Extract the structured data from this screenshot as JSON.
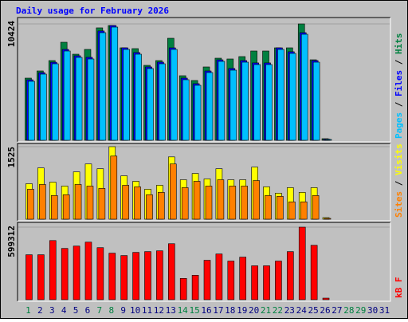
{
  "chart_data": {
    "type": "bar",
    "title": "Daily usage for February 2026",
    "categories": [
      "1",
      "2",
      "3",
      "4",
      "5",
      "6",
      "7",
      "8",
      "9",
      "10",
      "11",
      "12",
      "13",
      "14",
      "15",
      "16",
      "17",
      "18",
      "19",
      "20",
      "21",
      "22",
      "23",
      "24",
      "25",
      "26",
      "27",
      "28",
      "29",
      "30",
      "31"
    ],
    "category_colors": [
      "#008040",
      "#000080",
      "#000080",
      "#000080",
      "#000080",
      "#000080",
      "#008040",
      "#008040",
      "#000080",
      "#000080",
      "#000080",
      "#000080",
      "#000080",
      "#008040",
      "#008040",
      "#000080",
      "#000080",
      "#000080",
      "#000080",
      "#000080",
      "#008040",
      "#008040",
      "#000080",
      "#000080",
      "#000080",
      "#000080",
      "#000080",
      "#008040",
      "#008040",
      "#000080",
      "#000080"
    ],
    "legend_separator": " / ",
    "panels": [
      {
        "ylim": [
          0,
          10424
        ],
        "yticks": [
          10424
        ],
        "series": [
          {
            "name": "Hits",
            "color": "#008040",
            "values": [
              5569,
              6212,
              7140,
              8782,
              7711,
              8140,
              10070,
              10280,
              8282,
              8211,
              6712,
              7140,
              9139,
              5783,
              5355,
              6569,
              7354,
              7283,
              7497,
              7997,
              7997,
              8282,
              8282,
              10424,
              7211,
              143,
              null,
              null,
              null,
              null,
              null
            ]
          },
          {
            "name": "Files",
            "color": "#0000ff",
            "values": [
              5420,
              6060,
              6990,
              8140,
              7570,
              7430,
              9790,
              10280,
              8282,
              7860,
              6570,
              7000,
              8280,
              5570,
              5070,
              6210,
              7210,
              6430,
              7140,
              6930,
              6930,
              8282,
              7930,
              9640,
              7140,
              100,
              null,
              null,
              null,
              null,
              null
            ]
          },
          {
            "name": "Pages",
            "color": "#00c0ff",
            "values": [
              5284,
              5926,
              6854,
              7997,
              7426,
              7283,
              9639,
              10139,
              8140,
              7711,
              6426,
              6854,
              8140,
              5426,
              4927,
              6069,
              7069,
              6283,
              6997,
              6783,
              6783,
              8140,
              7783,
              9496,
              6997,
              71,
              null,
              null,
              null,
              null,
              null
            ]
          }
        ]
      },
      {
        "ylim": [
          0,
          1525
        ],
        "yticks": [
          1525
        ],
        "series": [
          {
            "name": "Visits",
            "color": "#ffff00",
            "values": [
              746,
              1078,
              779,
              696,
              995,
              1161,
              1061,
              1525,
              912,
              796,
              630,
              713,
              1310,
              829,
              961,
              846,
              1061,
              829,
              829,
              1094,
              680,
              547,
              663,
              564,
              663,
              33,
              null,
              null,
              null,
              null,
              null
            ]
          },
          {
            "name": "Sites",
            "color": "#ff8000",
            "values": [
              630,
              730,
              497,
              514,
              730,
              696,
              647,
              1327,
              713,
              680,
              514,
              564,
              1161,
              663,
              796,
              696,
              829,
              696,
              696,
              812,
              497,
              481,
              365,
              365,
              497,
              17,
              null,
              null,
              null,
              null,
              null
            ]
          }
        ]
      },
      {
        "ylim": [
          0,
          599312
        ],
        "yticks": [
          599312
        ],
        "series": [
          {
            "name": "kB F",
            "color": "#ff0000",
            "values": [
              371298,
              371298,
              488550,
              423410,
              442952,
              475522,
              429924,
              384326,
              364784,
              390840,
              397354,
              403868,
              462494,
              175878,
              201934,
              325700,
              377812,
              319186,
              351756,
              280102,
              280102,
              319186,
              397354,
              599312,
              449466,
              13028,
              null,
              null,
              null,
              null,
              null
            ]
          }
        ]
      }
    ]
  }
}
